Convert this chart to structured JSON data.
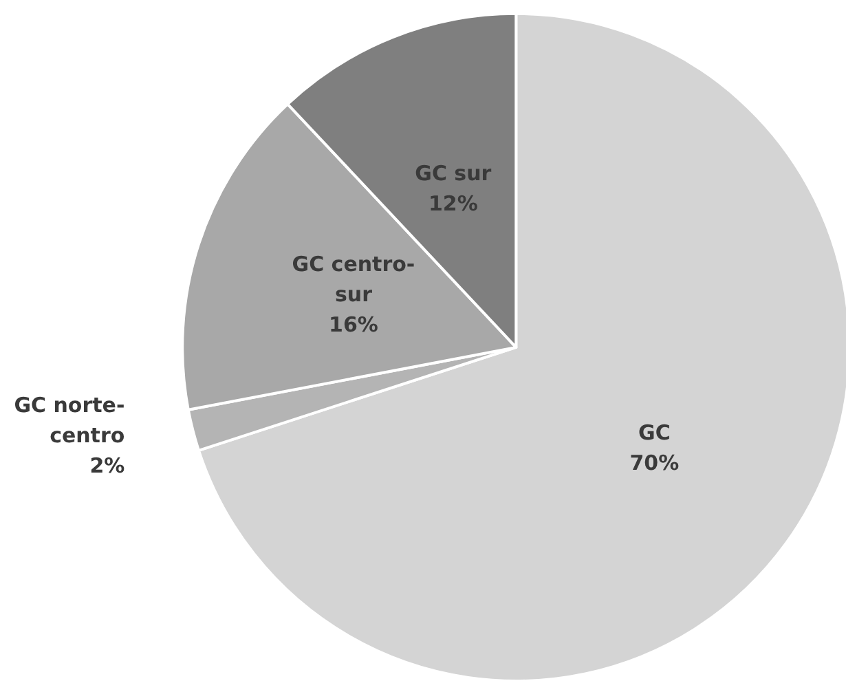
{
  "chart_data": {
    "type": "pie",
    "categories": [
      "GC",
      "GC norte-centro",
      "GC centro-sur",
      "GC sur"
    ],
    "values": [
      70,
      2,
      16,
      12
    ],
    "value_labels": [
      "70%",
      "2%",
      "16%",
      "12%"
    ],
    "colors": [
      "#d4d4d4",
      "#b4b4b4",
      "#a8a8a8",
      "#7f7f7f"
    ],
    "legend": false
  }
}
